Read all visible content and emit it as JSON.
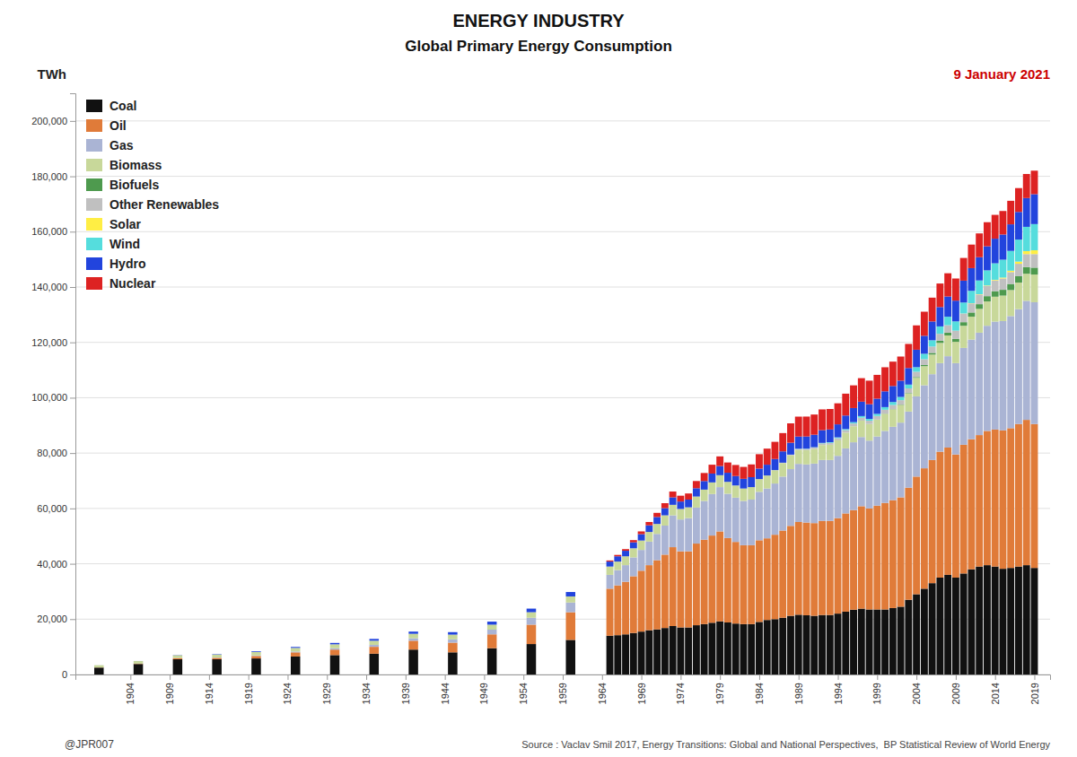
{
  "chart_data": {
    "type": "bar",
    "stacked": true,
    "title": "ENERGY INDUSTRY",
    "subtitle": "Global Primary Energy Consumption",
    "y_label": "TWh",
    "annotations": [
      {
        "text": "9 January 2021",
        "color": "#cc0000"
      },
      {
        "text": "@JPR007"
      },
      {
        "text": "Source : Vaclav Smil 2017, Energy Transitions: Global and National Perspectives,  BP Statistical Review of World Energy"
      }
    ],
    "grid": true,
    "legend": "upper left",
    "xlim": [
      1897,
      2021
    ],
    "xticks": [
      1904,
      1909,
      1914,
      1919,
      1924,
      1929,
      1934,
      1939,
      1944,
      1949,
      1954,
      1959,
      1964,
      1969,
      1974,
      1979,
      1984,
      1989,
      1994,
      1999,
      2004,
      2009,
      2014,
      2019
    ],
    "ylim": [
      0,
      210000
    ],
    "yticks": [
      0,
      {
        "value": 20000,
        "label": "20,000"
      },
      {
        "value": 40000,
        "label": "40,000"
      },
      {
        "value": 60000,
        "label": "60,000"
      },
      {
        "value": 80000,
        "label": "80,000"
      },
      {
        "value": 100000,
        "label": "100,000"
      },
      {
        "value": 120000,
        "label": "120,000"
      },
      {
        "value": 140000,
        "label": "140,000"
      },
      {
        "value": 160000,
        "label": "160,000"
      },
      {
        "value": 180000,
        "label": "180,000"
      },
      {
        "value": 200000,
        "label": "200,000"
      }
    ],
    "x": [
      1900,
      1905,
      1910,
      1915,
      1920,
      1925,
      1930,
      1935,
      1940,
      1945,
      1950,
      1955,
      1960,
      1965,
      1966,
      1967,
      1968,
      1969,
      1970,
      1971,
      1972,
      1973,
      1974,
      1975,
      1976,
      1977,
      1978,
      1979,
      1980,
      1981,
      1982,
      1983,
      1984,
      1985,
      1986,
      1987,
      1988,
      1989,
      1990,
      1991,
      1992,
      1993,
      1994,
      1995,
      1996,
      1997,
      1998,
      1999,
      2000,
      2001,
      2002,
      2003,
      2004,
      2005,
      2006,
      2007,
      2008,
      2009,
      2010,
      2011,
      2012,
      2013,
      2014,
      2015,
      2016,
      2017,
      2018,
      2019
    ],
    "series": [
      {
        "name": "Coal",
        "color": "#111111",
        "values": [
          2500,
          3800,
          5500,
          5500,
          5800,
          6500,
          7000,
          7500,
          9000,
          8000,
          9500,
          11000,
          12500,
          14000,
          14200,
          14500,
          15000,
          15500,
          16000,
          16300,
          16800,
          17500,
          17000,
          17000,
          17800,
          18200,
          18700,
          19200,
          18800,
          18400,
          18200,
          18200,
          19000,
          19700,
          20000,
          20500,
          21200,
          21600,
          21400,
          21200,
          21500,
          21500,
          22000,
          22700,
          23400,
          23800,
          23500,
          23500,
          23500,
          24000,
          24500,
          27000,
          29000,
          31000,
          33000,
          35000,
          36000,
          35000,
          36500,
          38000,
          39000,
          39500,
          39000,
          38200,
          38500,
          39000,
          39500,
          38500
        ]
      },
      {
        "name": "Oil",
        "color": "#e07b39",
        "values": [
          50,
          150,
          400,
          500,
          900,
          1500,
          2000,
          2500,
          3200,
          3500,
          5000,
          7000,
          10000,
          17000,
          18000,
          19000,
          20500,
          22000,
          23500,
          25000,
          26500,
          28500,
          27500,
          27500,
          29500,
          30500,
          31500,
          32500,
          30500,
          29500,
          28500,
          28500,
          29500,
          29500,
          30500,
          31500,
          32500,
          33500,
          33500,
          33500,
          34000,
          34000,
          34500,
          35500,
          36000,
          37000,
          36500,
          37500,
          38500,
          39000,
          39500,
          40500,
          42500,
          43500,
          44500,
          45500,
          46000,
          44500,
          46500,
          47000,
          47500,
          48500,
          49500,
          50000,
          50500,
          51500,
          52500,
          52000
        ]
      },
      {
        "name": "Gas",
        "color": "#aab4d4",
        "values": [
          0,
          0,
          50,
          100,
          200,
          300,
          500,
          700,
          900,
          1200,
          1700,
          2500,
          3500,
          5000,
          5500,
          6000,
          6800,
          7500,
          8500,
          9500,
          10500,
          11500,
          11500,
          12000,
          13000,
          14000,
          15000,
          16000,
          16000,
          16000,
          16000,
          16500,
          17500,
          18000,
          18500,
          19500,
          20500,
          21000,
          21000,
          21500,
          22000,
          22000,
          22500,
          23500,
          24500,
          25000,
          24500,
          25000,
          26000,
          26500,
          27000,
          27500,
          29000,
          30000,
          31000,
          32000,
          33000,
          33000,
          35000,
          36000,
          37000,
          38000,
          39000,
          39500,
          40500,
          41500,
          43000,
          44000
        ]
      },
      {
        "name": "Biomass",
        "color": "#c8d89a",
        "values": [
          800,
          900,
          1000,
          1100,
          1200,
          1300,
          1400,
          1500,
          1600,
          1700,
          1800,
          2000,
          2200,
          3000,
          3100,
          3200,
          3300,
          3400,
          3500,
          3600,
          3700,
          3800,
          3800,
          3900,
          4000,
          4100,
          4200,
          4300,
          4300,
          4400,
          4500,
          4500,
          4600,
          4700,
          4800,
          4900,
          5000,
          5100,
          5200,
          5300,
          5400,
          5500,
          5600,
          5700,
          5800,
          5900,
          6000,
          6100,
          6200,
          6300,
          6400,
          6500,
          6700,
          6900,
          7100,
          7300,
          7500,
          7700,
          8000,
          8300,
          8600,
          8800,
          9000,
          9200,
          9400,
          9600,
          9800,
          10000
        ]
      },
      {
        "name": "Biofuels",
        "color": "#4e9a4e",
        "values": [
          0,
          0,
          0,
          0,
          0,
          0,
          0,
          0,
          0,
          0,
          0,
          0,
          0,
          0,
          0,
          0,
          0,
          0,
          0,
          0,
          0,
          0,
          0,
          0,
          0,
          0,
          0,
          0,
          0,
          0,
          0,
          0,
          0,
          0,
          0,
          0,
          0,
          0,
          0,
          0,
          0,
          0,
          0,
          0,
          0,
          0,
          0,
          0,
          50,
          80,
          120,
          180,
          280,
          420,
          600,
          800,
          1000,
          1100,
          1300,
          1500,
          1700,
          1900,
          2000,
          2100,
          2200,
          2300,
          2400,
          2500
        ]
      },
      {
        "name": "Other Renewables",
        "color": "#c0c0c0",
        "values": [
          0,
          0,
          0,
          0,
          0,
          0,
          0,
          0,
          0,
          0,
          0,
          0,
          0,
          0,
          0,
          0,
          0,
          0,
          0,
          0,
          0,
          0,
          0,
          0,
          0,
          0,
          0,
          0,
          0,
          0,
          0,
          0,
          0,
          0,
          50,
          100,
          200,
          300,
          400,
          500,
          600,
          700,
          800,
          900,
          1000,
          1100,
          1200,
          1300,
          1400,
          1500,
          1600,
          1700,
          1900,
          2100,
          2300,
          2500,
          2700,
          2900,
          3100,
          3300,
          3500,
          3700,
          3900,
          4100,
          4300,
          4500,
          4700,
          4900
        ]
      },
      {
        "name": "Solar",
        "color": "#ffee44",
        "values": [
          0,
          0,
          0,
          0,
          0,
          0,
          0,
          0,
          0,
          0,
          0,
          0,
          0,
          0,
          0,
          0,
          0,
          0,
          0,
          0,
          0,
          0,
          0,
          0,
          0,
          0,
          0,
          0,
          0,
          0,
          0,
          0,
          0,
          0,
          0,
          0,
          0,
          0,
          0,
          0,
          0,
          0,
          0,
          0,
          0,
          0,
          0,
          0,
          0,
          0,
          0,
          0,
          0,
          0,
          0,
          5,
          10,
          20,
          40,
          70,
          110,
          160,
          210,
          310,
          490,
          780,
          1080,
          1380
        ]
      },
      {
        "name": "Wind",
        "color": "#55dddd",
        "values": [
          0,
          0,
          0,
          0,
          0,
          0,
          0,
          0,
          0,
          0,
          0,
          0,
          0,
          0,
          0,
          0,
          0,
          0,
          0,
          0,
          0,
          0,
          0,
          0,
          0,
          0,
          0,
          0,
          0,
          0,
          0,
          0,
          0,
          5,
          10,
          20,
          40,
          70,
          90,
          130,
          180,
          230,
          280,
          370,
          470,
          570,
          660,
          760,
          960,
          1060,
          1160,
          1360,
          1660,
          1960,
          2260,
          2660,
          3060,
          3360,
          3960,
          4460,
          4960,
          5460,
          5960,
          6460,
          7160,
          7960,
          8760,
          9460
        ]
      },
      {
        "name": "Hydro",
        "color": "#2244dd",
        "values": [
          5,
          20,
          80,
          150,
          250,
          350,
          500,
          650,
          800,
          900,
          1100,
          1300,
          1600,
          1800,
          1900,
          2000,
          2150,
          2300,
          2400,
          2500,
          2600,
          2700,
          2700,
          2800,
          3000,
          3100,
          3200,
          3300,
          3300,
          3400,
          3500,
          3600,
          3800,
          3900,
          4000,
          4100,
          4300,
          4400,
          4400,
          4500,
          4600,
          4600,
          4700,
          4900,
          5100,
          5200,
          5300,
          5500,
          5700,
          5800,
          5900,
          6000,
          6300,
          6500,
          6800,
          7000,
          7300,
          7500,
          7900,
          8200,
          8400,
          8700,
          8900,
          9100,
          9600,
          10000,
          10400,
          10800
        ]
      },
      {
        "name": "Nuclear",
        "color": "#dd2222",
        "values": [
          0,
          0,
          0,
          0,
          0,
          0,
          0,
          0,
          0,
          0,
          0,
          0,
          0,
          400,
          500,
          600,
          800,
          1000,
          1200,
          1500,
          1800,
          2100,
          2100,
          2200,
          2600,
          2900,
          3200,
          3500,
          3700,
          4000,
          4300,
          4600,
          5200,
          5800,
          6200,
          6600,
          7000,
          7200,
          7200,
          7300,
          7500,
          7400,
          7600,
          7900,
          8200,
          8500,
          8500,
          8600,
          8700,
          8800,
          8700,
          8700,
          8800,
          8700,
          8600,
          8500,
          8400,
          8000,
          8200,
          8500,
          8600,
          8700,
          8600,
          8500,
          8500,
          8600,
          8700,
          8500
        ]
      }
    ]
  }
}
